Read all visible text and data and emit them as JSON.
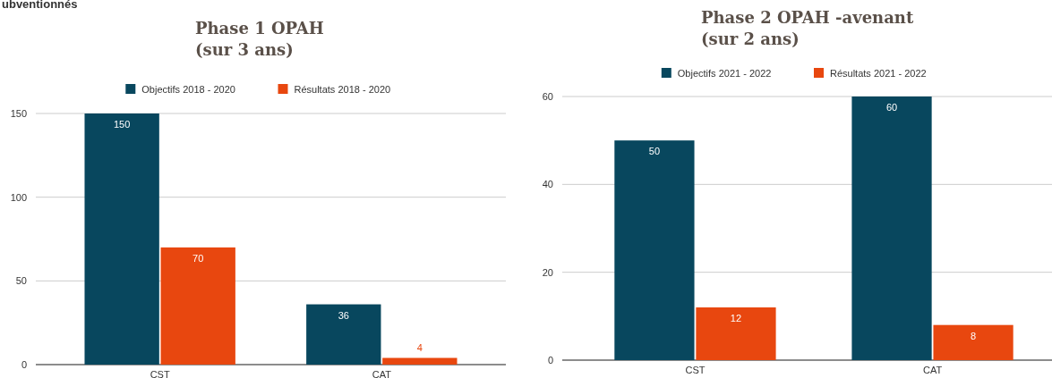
{
  "chart_data": [
    {
      "type": "bar",
      "title": "Phase 1 OPAH\n(sur 3 ans)",
      "annotations": [
        "ubventionnés"
      ],
      "categories": [
        "CST",
        "CAT"
      ],
      "series": [
        {
          "name": "Objectifs 2018 - 2020",
          "color": "#08475e",
          "values": [
            150,
            36
          ]
        },
        {
          "name": "Résultats 2018 - 2020",
          "color": "#e8470f",
          "values": [
            70,
            4
          ]
        }
      ],
      "ylim": [
        0,
        150
      ],
      "yticks": [
        0,
        50,
        100,
        150
      ],
      "grid": "y",
      "legend": "top",
      "data_labels": true
    },
    {
      "type": "bar",
      "title": "Phase 2 OPAH -avenant\n(sur 2 ans)",
      "categories": [
        "CST",
        "CAT"
      ],
      "series": [
        {
          "name": "Objectifs 2021 - 2022",
          "color": "#08475e",
          "values": [
            50,
            60
          ]
        },
        {
          "name": "Résultats 2021 - 2022",
          "color": "#e8470f",
          "values": [
            12,
            8
          ]
        }
      ],
      "ylim": [
        0,
        60
      ],
      "yticks": [
        0,
        20,
        40,
        60
      ],
      "grid": "y",
      "legend": "top",
      "data_labels": true
    }
  ]
}
